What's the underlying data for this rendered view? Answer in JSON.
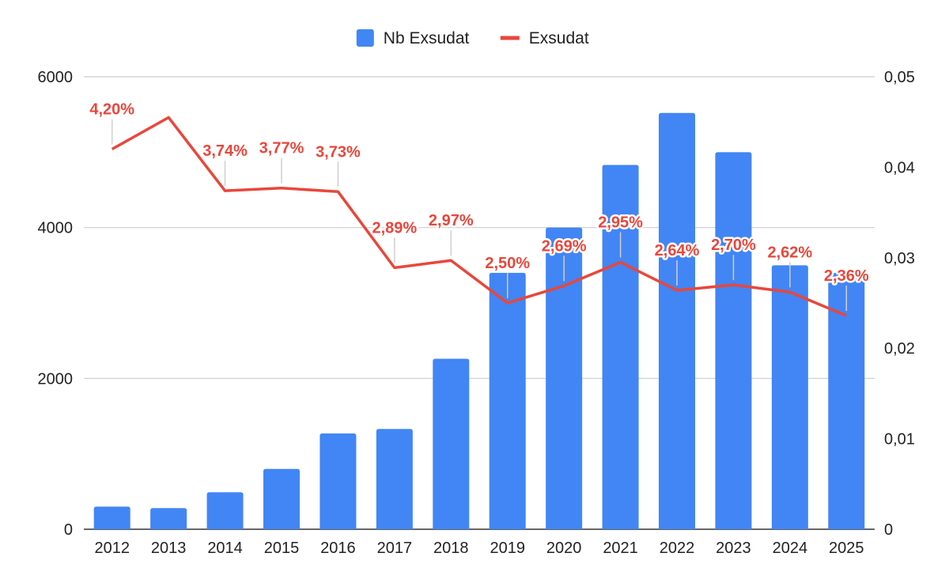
{
  "chart_data": {
    "type": "bar",
    "categories": [
      "2012",
      "2013",
      "2014",
      "2015",
      "2016",
      "2017",
      "2018",
      "2019",
      "2020",
      "2021",
      "2022",
      "2023",
      "2024",
      "2025"
    ],
    "series": [
      {
        "name": "Nb Exsudat",
        "kind": "bar",
        "axis": "left",
        "color": "#4285f4",
        "values": [
          300,
          280,
          490,
          800,
          1270,
          1330,
          2260,
          3400,
          4000,
          4830,
          5520,
          5000,
          3500,
          3400
        ]
      },
      {
        "name": "Exsudat",
        "kind": "line",
        "axis": "right",
        "color": "#e8473b",
        "values": [
          0.042,
          0.0455,
          0.0374,
          0.0377,
          0.0373,
          0.0289,
          0.0297,
          0.025,
          0.0269,
          0.0295,
          0.0264,
          0.027,
          0.0262,
          0.0236
        ],
        "data_labels": [
          "4,20%",
          "",
          "3,74%",
          "3,77%",
          "3,73%",
          "2,89%",
          "2,97%",
          "2,50%",
          "2,69%",
          "2,95%",
          "2,64%",
          "2,70%",
          "2,62%",
          "2,36%"
        ]
      }
    ],
    "y_left": {
      "min": 0,
      "max": 6000,
      "ticks": [
        0,
        2000,
        4000,
        6000
      ],
      "tick_labels": [
        "0",
        "2000",
        "4000",
        "6000"
      ]
    },
    "y_right": {
      "min": 0,
      "max": 0.05,
      "ticks": [
        0,
        0.01,
        0.02,
        0.03,
        0.04,
        0.05
      ],
      "tick_labels": [
        "0",
        "0,01",
        "0,02",
        "0,03",
        "0,04",
        "0,05"
      ]
    },
    "legend_position": "top",
    "grid": true,
    "title": "",
    "xlabel": "",
    "ylabel": ""
  }
}
